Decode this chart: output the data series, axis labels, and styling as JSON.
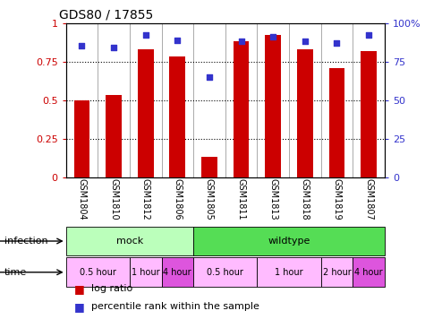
{
  "title": "GDS80 / 17855",
  "samples": [
    "GSM1804",
    "GSM1810",
    "GSM1812",
    "GSM1806",
    "GSM1805",
    "GSM1811",
    "GSM1813",
    "GSM1818",
    "GSM1819",
    "GSM1807"
  ],
  "log_ratio": [
    0.5,
    0.53,
    0.83,
    0.78,
    0.13,
    0.88,
    0.92,
    0.83,
    0.71,
    0.82
  ],
  "percentile": [
    0.85,
    0.84,
    0.92,
    0.89,
    0.65,
    0.88,
    0.91,
    0.88,
    0.87,
    0.92
  ],
  "bar_color": "#cc0000",
  "dot_color": "#3333cc",
  "ylim_left": [
    0,
    1.0
  ],
  "ylim_right": [
    0,
    100
  ],
  "yticks_left": [
    0,
    0.25,
    0.5,
    0.75,
    1.0
  ],
  "yticks_right": [
    0,
    25,
    50,
    75,
    100
  ],
  "ytick_labels_left": [
    "0",
    "0.25",
    "0.5",
    "0.75",
    "1"
  ],
  "ytick_labels_right": [
    "0",
    "25",
    "50",
    "75",
    "100%"
  ],
  "infection_groups": [
    {
      "label": "mock",
      "start": 0,
      "end": 4,
      "color": "#bbffbb"
    },
    {
      "label": "wildtype",
      "start": 4,
      "end": 10,
      "color": "#55dd55"
    }
  ],
  "time_groups": [
    {
      "label": "0.5 hour",
      "start": 0,
      "end": 2,
      "color": "#ffbbff"
    },
    {
      "label": "1 hour",
      "start": 2,
      "end": 3,
      "color": "#ffbbff"
    },
    {
      "label": "4 hour",
      "start": 3,
      "end": 4,
      "color": "#dd55dd"
    },
    {
      "label": "0.5 hour",
      "start": 4,
      "end": 6,
      "color": "#ffbbff"
    },
    {
      "label": "1 hour",
      "start": 6,
      "end": 8,
      "color": "#ffbbff"
    },
    {
      "label": "2 hour",
      "start": 8,
      "end": 9,
      "color": "#ffbbff"
    },
    {
      "label": "4 hour",
      "start": 9,
      "end": 10,
      "color": "#dd55dd"
    }
  ],
  "legend_items": [
    {
      "label": "log ratio",
      "color": "#cc0000"
    },
    {
      "label": "percentile rank within the sample",
      "color": "#3333cc"
    }
  ],
  "bar_width": 0.5,
  "grid_vals": [
    0.25,
    0.5,
    0.75
  ]
}
